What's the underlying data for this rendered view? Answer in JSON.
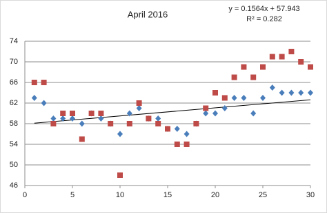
{
  "chart_data": {
    "type": "scatter",
    "title": "April 2016",
    "x": [
      1,
      2,
      3,
      4,
      5,
      6,
      7,
      8,
      9,
      10,
      11,
      12,
      13,
      14,
      15,
      16,
      17,
      18,
      19,
      20,
      21,
      22,
      23,
      24,
      25,
      26,
      27,
      28,
      29,
      30
    ],
    "series": [
      {
        "color": "#4a7ebb",
        "marker": "diamond",
        "values": [
          63,
          62,
          59,
          59,
          59,
          58,
          60,
          59,
          58,
          56,
          60,
          61,
          59,
          59,
          57,
          57,
          56,
          58,
          60,
          60,
          61,
          63,
          63,
          60,
          63,
          65,
          64,
          64,
          64,
          64
        ]
      },
      {
        "color": "#be4b48",
        "marker": "square",
        "values": [
          66,
          66,
          58,
          60,
          60,
          55,
          60,
          60,
          58,
          48,
          58,
          62,
          59,
          58,
          57,
          54,
          54,
          58,
          61,
          64,
          63,
          67,
          69,
          67,
          69,
          71,
          71,
          72,
          70,
          69
        ]
      }
    ],
    "trendline": {
      "equation": "y = 0.1564x + 57.943",
      "r_squared": "R² = 0.282",
      "slope": 0.1564,
      "intercept": 57.943,
      "xrange": [
        1,
        30
      ],
      "color": "#000000"
    },
    "xlim": [
      0,
      30
    ],
    "xticks": [
      0,
      5,
      10,
      15,
      20,
      25,
      30
    ],
    "ylim": [
      46,
      74
    ],
    "yticks": [
      46,
      50,
      54,
      58,
      62,
      66,
      70,
      74
    ],
    "grid": true
  }
}
